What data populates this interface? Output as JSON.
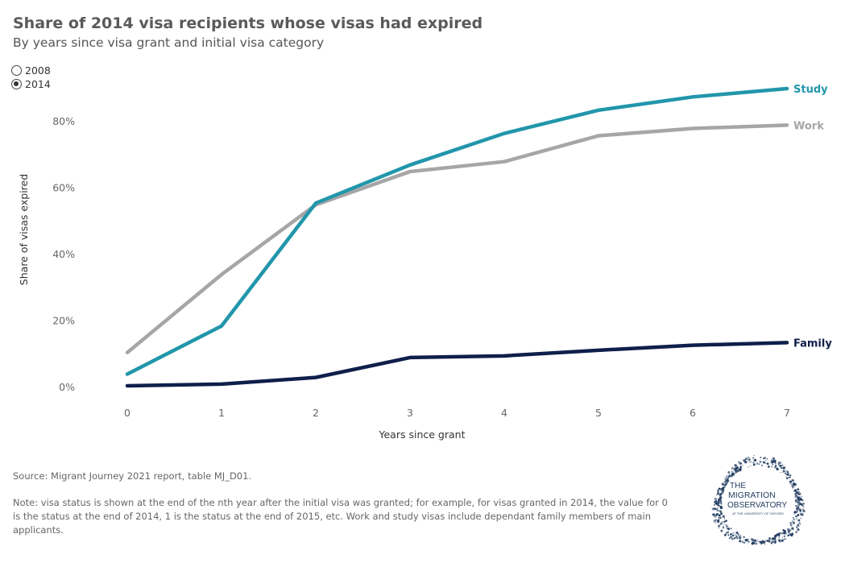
{
  "title": "Share of 2014 visa recipients whose visas had expired",
  "subtitle": "By years since visa grant and initial visa category",
  "year_selector": {
    "options": [
      {
        "label": "2008",
        "selected": false
      },
      {
        "label": "2014",
        "selected": true
      }
    ]
  },
  "source": "Source: Migrant Journey 2021 report, table MJ_D01.",
  "note": "Note: visa status is shown at the end of the nth year after the initial visa was granted; for example, for visas granted in 2014, the value for 0 is the status at the end of 2014, 1 is the status at the end of 2015, etc. Work and study visas include dependant family members of main applicants.",
  "logo": {
    "lines": [
      "THE",
      "MIGRATION",
      "OBSERVATORY",
      "AT THE UNIVERSITY OF OXFORD"
    ],
    "color": "#1f3a5f"
  },
  "chart_data": {
    "type": "line",
    "xlabel": "Years since grant",
    "ylabel": "Share of visas expired",
    "x": [
      0,
      1,
      2,
      3,
      4,
      5,
      6,
      7
    ],
    "xlim": [
      0,
      7
    ],
    "ylim": [
      0,
      90
    ],
    "yticks": [
      0,
      20,
      40,
      60,
      80
    ],
    "ytick_labels": [
      "0%",
      "20%",
      "40%",
      "60%",
      "80%"
    ],
    "grid": false,
    "legend": "end-of-line labels",
    "series": [
      {
        "name": "Study",
        "color": "#2196ab",
        "values": [
          4,
          18.5,
          55.5,
          67,
          76.5,
          83.5,
          87.5,
          90
        ]
      },
      {
        "name": "Work",
        "color": "#a6a6a6",
        "values": [
          10.5,
          34,
          55,
          65,
          68,
          75.8,
          78,
          79
        ]
      },
      {
        "name": "Family",
        "color": "#0f1f4b",
        "values": [
          0.5,
          1,
          3,
          9,
          9.5,
          11.2,
          12.7,
          13.5
        ]
      }
    ]
  }
}
